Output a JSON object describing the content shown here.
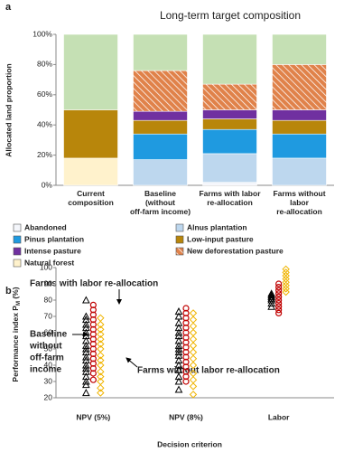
{
  "chart_data": [
    {
      "type": "stacked-bar",
      "panel": "a",
      "title": "Long-term target composition",
      "ylabel": "Allocated land proportion",
      "categories": [
        "Current composition",
        "Baseline (without off-farm income)",
        "Farms with labor re-allocation",
        "Farms without labor re-allocation"
      ],
      "ylim": [
        0,
        100
      ],
      "yticks": [
        {
          "value": 0,
          "label": "0%"
        },
        {
          "value": 20,
          "label": "20%"
        },
        {
          "value": 40,
          "label": "40%"
        },
        {
          "value": 60,
          "label": "60%"
        },
        {
          "value": 80,
          "label": "80%"
        },
        {
          "value": 100,
          "label": "100%"
        }
      ],
      "series": [
        {
          "name": "Abandoned",
          "color": "#f4f6fb",
          "values": [
            0,
            0,
            2,
            0
          ]
        },
        {
          "name": "Alnus plantation",
          "color": "#bdd7ee",
          "values": [
            0,
            17,
            19,
            18
          ]
        },
        {
          "name": "Pinus plantation",
          "color": "#1f9ae0",
          "values": [
            0,
            17,
            16,
            16
          ]
        },
        {
          "name": "Low-input pasture",
          "color": "#b8860b",
          "values": [
            32,
            9,
            7,
            9
          ]
        },
        {
          "name": "Intense pasture",
          "color": "#7030a0",
          "values": [
            0,
            6,
            6,
            7
          ]
        },
        {
          "name": "New deforestation pasture",
          "color": "#e0824a",
          "hatch": true,
          "values": [
            0,
            27,
            17,
            30
          ]
        },
        {
          "name": "Natural forest",
          "color": "#fff2cc",
          "values": [
            18,
            0,
            0,
            0
          ]
        },
        {
          "color": "#c5e0b4",
          "values": [
            50,
            24,
            33,
            20
          ]
        }
      ]
    },
    {
      "type": "strip",
      "panel": "b",
      "ylabel": [
        "Performance index P",
        "M",
        " (%)"
      ],
      "xlabel": "Decision criterion",
      "categories": [
        "NPV (5%)",
        "NPV (8%)",
        "Labor"
      ],
      "ylim": [
        20,
        100
      ],
      "yticks": [
        20,
        30,
        40,
        50,
        60,
        70,
        80,
        90,
        100
      ],
      "annotations": [
        "Farms with labor re-allocation",
        "Baseline",
        "without",
        "off-farm",
        "income",
        "Farms without labor re-allocation"
      ],
      "series": [
        {
          "marker": "triangle",
          "color": "#000000",
          "values": [
            [
              23,
              28,
              30,
              33,
              36,
              38,
              40,
              43,
              45,
              48,
              50,
              52,
              55,
              58,
              60,
              63,
              65,
              68,
              70,
              80
            ],
            [
              25,
              30,
              33,
              37,
              40,
              43,
              46,
              48,
              50,
              52,
              55,
              58,
              60,
              63,
              66,
              70,
              73
            ],
            [
              76,
              78,
              80,
              81,
              82,
              83,
              84
            ]
          ]
        },
        {
          "marker": "circle",
          "color": "#c00000",
          "values": [
            [
              31,
              35,
              38,
              41,
              44,
              47,
              50,
              53,
              56,
              59,
              62,
              65,
              68,
              71,
              74,
              77
            ],
            [
              30,
              33,
              36,
              39,
              42,
              45,
              48,
              51,
              54,
              57,
              60,
              63,
              66,
              69,
              72,
              75
            ],
            [
              72,
              74,
              76,
              78,
              80,
              82,
              84,
              86,
              88,
              90
            ]
          ]
        },
        {
          "marker": "diamond",
          "color": "#f0b400",
          "values": [
            [
              23,
              26,
              30,
              33,
              36,
              40,
              43,
              46,
              50,
              53,
              56,
              59,
              62,
              65,
              69
            ],
            [
              22,
              27,
              31,
              35,
              40,
              44,
              48,
              52,
              56,
              60,
              64,
              68,
              72
            ],
            [
              85,
              87,
              89,
              91,
              93,
              95,
              97,
              99
            ]
          ]
        }
      ]
    }
  ]
}
